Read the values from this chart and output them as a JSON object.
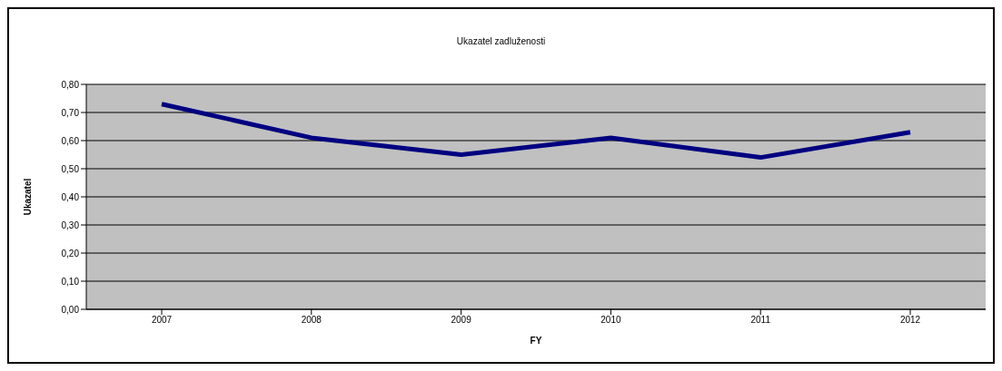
{
  "chart_data": {
    "type": "line",
    "title": "Ukazatel zadluženosti",
    "xlabel": "FY",
    "ylabel": "Ukazatel",
    "categories": [
      "2007",
      "2008",
      "2009",
      "2010",
      "2011",
      "2012"
    ],
    "series": [
      {
        "color": "#000080",
        "values": [
          0.73,
          0.61,
          0.55,
          0.61,
          0.54,
          0.63
        ]
      }
    ],
    "ylim": [
      0,
      0.8
    ],
    "yticks": [
      {
        "value": 0,
        "label": "0,00"
      },
      {
        "value": 0.1,
        "label": "0,10"
      },
      {
        "value": 0.2,
        "label": "0,20"
      },
      {
        "value": 0.3,
        "label": "0,30"
      },
      {
        "value": 0.4,
        "label": "0,40"
      },
      {
        "value": 0.5,
        "label": "0,50"
      },
      {
        "value": 0.6,
        "label": "0,60"
      },
      {
        "value": 0.7,
        "label": "0,70"
      },
      {
        "value": 0.8,
        "label": "0,80"
      }
    ],
    "grid": "y",
    "legend": false,
    "marker": "none",
    "line_style": "solid"
  }
}
